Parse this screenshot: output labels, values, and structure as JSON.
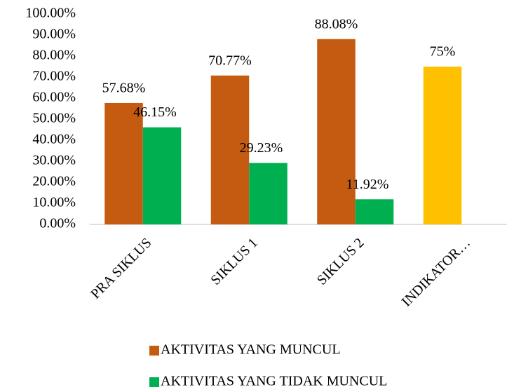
{
  "chart_data": {
    "type": "bar",
    "categories": [
      "PRA SIKLUS",
      "SIKLUS 1",
      "SIKLUS 2",
      "INDIKATOR…"
    ],
    "series": [
      {
        "name": "AKTIVITAS YANG MUNCUL",
        "color": "#c55a11",
        "point_colors": [
          "#c55a11",
          "#c55a11",
          "#c55a11",
          "#ffc000"
        ],
        "values": [
          57.68,
          70.77,
          88.08,
          75
        ],
        "value_labels": [
          "57.68%",
          "70.77%",
          "88.08%",
          "75%"
        ]
      },
      {
        "name": "AKTIVITAS YANG TIDAK MUNCUL",
        "color": "#00b050",
        "values": [
          46.15,
          29.23,
          11.92,
          null
        ],
        "value_labels": [
          "46.15%",
          "29.23%",
          "11.92%",
          null
        ]
      }
    ],
    "ylim": [
      0,
      100
    ],
    "yticks": [
      {
        "value": 0,
        "label": "0.00%"
      },
      {
        "value": 10,
        "label": "10.00%"
      },
      {
        "value": 20,
        "label": "20.00%"
      },
      {
        "value": 30,
        "label": "30.00%"
      },
      {
        "value": 40,
        "label": "40.00%"
      },
      {
        "value": 50,
        "label": "50.00%"
      },
      {
        "value": 60,
        "label": "60.00%"
      },
      {
        "value": 70,
        "label": "70.00%"
      },
      {
        "value": 80,
        "label": "80.00%"
      },
      {
        "value": 90,
        "label": "90.00%"
      },
      {
        "value": 100,
        "label": "100.00%"
      }
    ],
    "grid": false,
    "legend": "bottom"
  }
}
